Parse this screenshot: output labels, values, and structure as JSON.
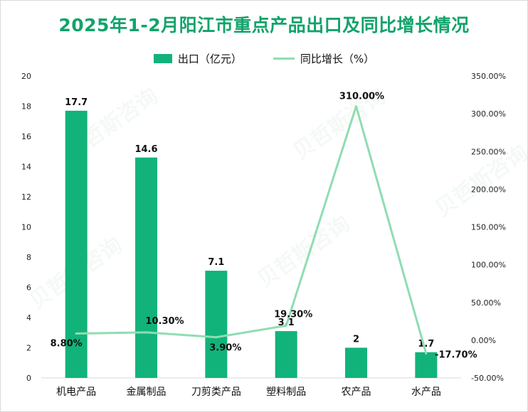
{
  "title": "2025年1-2月阳江市重点产品出口及同比增长情况",
  "watermark": "贝哲斯咨询",
  "legend": {
    "bar_label": "出口（亿元）",
    "line_label": "同比增长（%）"
  },
  "colors": {
    "bar": "#12b37a",
    "line": "#8fddb0",
    "title": "#12a36b"
  },
  "chart_data": {
    "type": "bar+line",
    "categories": [
      "机电产品",
      "金属制品",
      "刀剪类产品",
      "塑料制品",
      "农产品",
      "水产品"
    ],
    "series": [
      {
        "name": "出口（亿元）",
        "type": "bar",
        "axis": "left",
        "values": [
          17.7,
          14.6,
          7.1,
          3.1,
          2,
          1.7
        ],
        "labels": [
          "17.7",
          "14.6",
          "7.1",
          "3.1",
          "2",
          "1.7"
        ]
      },
      {
        "name": "同比增长（%）",
        "type": "line",
        "axis": "right",
        "values": [
          8.8,
          10.3,
          3.9,
          19.3,
          310.0,
          -17.7
        ],
        "labels": [
          "8.80%",
          "10.30%",
          "3.90%",
          "19.30%",
          "310.00%",
          "-17.70%"
        ]
      }
    ],
    "y_left": {
      "min": 0,
      "max": 20,
      "ticks": [
        "0",
        "2",
        "4",
        "6",
        "8",
        "10",
        "12",
        "14",
        "16",
        "18",
        "20"
      ]
    },
    "y_right": {
      "min": -50,
      "max": 350,
      "ticks": [
        "-50.00%",
        "0.00%",
        "50.00%",
        "100.00%",
        "150.00%",
        "200.00%",
        "250.00%",
        "300.00%",
        "350.00%"
      ]
    },
    "grid": false,
    "legend_position": "top"
  }
}
